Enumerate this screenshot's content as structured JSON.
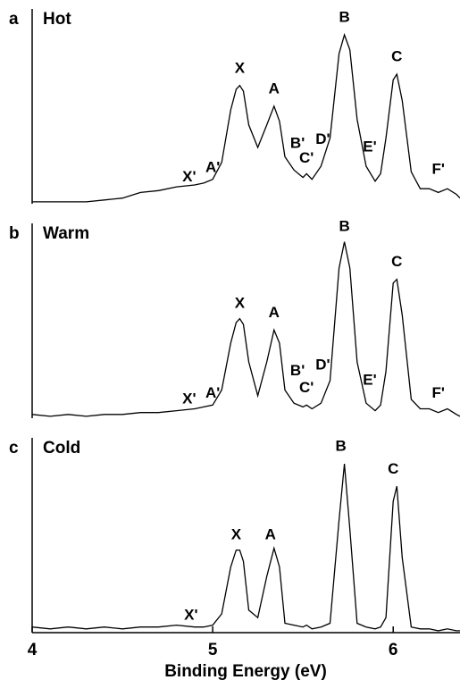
{
  "chart_data": [
    {
      "type": "line",
      "label": "a",
      "title": "Hot",
      "xlim": [
        4,
        6.37
      ],
      "ylim": [
        0,
        1
      ],
      "color": "#000000",
      "x": [
        4.0,
        4.1,
        4.2,
        4.3,
        4.4,
        4.5,
        4.6,
        4.7,
        4.8,
        4.9,
        4.95,
        5.0,
        5.05,
        5.1,
        5.13,
        5.15,
        5.17,
        5.2,
        5.25,
        5.3,
        5.34,
        5.37,
        5.4,
        5.45,
        5.5,
        5.52,
        5.55,
        5.6,
        5.65,
        5.7,
        5.73,
        5.76,
        5.8,
        5.85,
        5.9,
        5.93,
        5.96,
        6.0,
        6.02,
        6.05,
        6.1,
        6.15,
        6.2,
        6.25,
        6.3,
        6.35,
        6.37
      ],
      "values": [
        0.01,
        0.01,
        0.01,
        0.01,
        0.02,
        0.03,
        0.06,
        0.07,
        0.09,
        0.1,
        0.11,
        0.13,
        0.22,
        0.5,
        0.61,
        0.63,
        0.6,
        0.42,
        0.3,
        0.42,
        0.52,
        0.44,
        0.25,
        0.18,
        0.14,
        0.16,
        0.13,
        0.2,
        0.35,
        0.8,
        0.9,
        0.82,
        0.45,
        0.2,
        0.12,
        0.16,
        0.35,
        0.66,
        0.69,
        0.55,
        0.17,
        0.08,
        0.08,
        0.06,
        0.08,
        0.05,
        0.03
      ],
      "annotations": [
        {
          "text": "X",
          "x": 5.15,
          "y": 0.72
        },
        {
          "text": "A",
          "x": 5.34,
          "y": 0.61
        },
        {
          "text": "B",
          "x": 5.73,
          "y": 0.99
        },
        {
          "text": "C",
          "x": 6.02,
          "y": 0.78
        },
        {
          "text": "X'",
          "x": 4.87,
          "y": 0.14
        },
        {
          "text": "A'",
          "x": 5.0,
          "y": 0.19
        },
        {
          "text": "B'",
          "x": 5.47,
          "y": 0.32
        },
        {
          "text": "C'",
          "x": 5.52,
          "y": 0.24
        },
        {
          "text": "D'",
          "x": 5.61,
          "y": 0.34
        },
        {
          "text": "E'",
          "x": 5.87,
          "y": 0.3
        },
        {
          "text": "F'",
          "x": 6.25,
          "y": 0.18
        }
      ]
    },
    {
      "type": "line",
      "label": "b",
      "title": "Warm",
      "xlim": [
        4,
        6.37
      ],
      "ylim": [
        0,
        1
      ],
      "color": "#000000",
      "x": [
        4.0,
        4.1,
        4.2,
        4.3,
        4.4,
        4.5,
        4.6,
        4.7,
        4.8,
        4.9,
        4.95,
        5.0,
        5.05,
        5.1,
        5.13,
        5.15,
        5.17,
        5.2,
        5.25,
        5.3,
        5.34,
        5.37,
        5.4,
        5.45,
        5.5,
        5.52,
        5.55,
        5.6,
        5.65,
        5.7,
        5.73,
        5.76,
        5.8,
        5.85,
        5.9,
        5.93,
        5.96,
        6.0,
        6.02,
        6.05,
        6.1,
        6.15,
        6.2,
        6.25,
        6.3,
        6.35,
        6.37
      ],
      "values": [
        0.02,
        0.01,
        0.02,
        0.01,
        0.02,
        0.02,
        0.03,
        0.03,
        0.04,
        0.05,
        0.06,
        0.07,
        0.15,
        0.4,
        0.51,
        0.53,
        0.5,
        0.3,
        0.12,
        0.3,
        0.47,
        0.4,
        0.15,
        0.08,
        0.06,
        0.07,
        0.05,
        0.08,
        0.2,
        0.8,
        0.94,
        0.8,
        0.3,
        0.08,
        0.04,
        0.07,
        0.25,
        0.72,
        0.74,
        0.55,
        0.1,
        0.05,
        0.05,
        0.03,
        0.05,
        0.02,
        0.01
      ],
      "annotations": [
        {
          "text": "X",
          "x": 5.15,
          "y": 0.61
        },
        {
          "text": "A",
          "x": 5.34,
          "y": 0.56
        },
        {
          "text": "B",
          "x": 5.73,
          "y": 1.02
        },
        {
          "text": "C",
          "x": 6.02,
          "y": 0.83
        },
        {
          "text": "X'",
          "x": 4.87,
          "y": 0.1
        },
        {
          "text": "A'",
          "x": 5.0,
          "y": 0.13
        },
        {
          "text": "B'",
          "x": 5.47,
          "y": 0.25
        },
        {
          "text": "C'",
          "x": 5.52,
          "y": 0.16
        },
        {
          "text": "D'",
          "x": 5.61,
          "y": 0.28
        },
        {
          "text": "E'",
          "x": 5.87,
          "y": 0.2
        },
        {
          "text": "F'",
          "x": 6.25,
          "y": 0.13
        }
      ]
    },
    {
      "type": "line",
      "label": "c",
      "title": "Cold",
      "xlim": [
        4,
        6.37
      ],
      "ylim": [
        0,
        1
      ],
      "color": "#000000",
      "xlabel": "Binding Energy (eV)",
      "xticks": [
        4,
        5,
        6
      ],
      "x": [
        4.0,
        4.1,
        4.2,
        4.3,
        4.4,
        4.5,
        4.6,
        4.7,
        4.8,
        4.9,
        4.95,
        5.0,
        5.05,
        5.1,
        5.13,
        5.15,
        5.17,
        5.2,
        5.25,
        5.3,
        5.34,
        5.37,
        5.4,
        5.45,
        5.5,
        5.52,
        5.55,
        5.6,
        5.65,
        5.7,
        5.73,
        5.76,
        5.8,
        5.85,
        5.9,
        5.93,
        5.96,
        6.0,
        6.02,
        6.05,
        6.1,
        6.15,
        6.2,
        6.25,
        6.3,
        6.35,
        6.37
      ],
      "values": [
        0.03,
        0.02,
        0.03,
        0.02,
        0.03,
        0.02,
        0.03,
        0.03,
        0.04,
        0.03,
        0.03,
        0.04,
        0.1,
        0.35,
        0.44,
        0.44,
        0.38,
        0.12,
        0.08,
        0.3,
        0.45,
        0.35,
        0.05,
        0.04,
        0.03,
        0.04,
        0.02,
        0.03,
        0.05,
        0.6,
        0.9,
        0.55,
        0.05,
        0.03,
        0.02,
        0.03,
        0.08,
        0.7,
        0.78,
        0.4,
        0.03,
        0.02,
        0.02,
        0.01,
        0.02,
        0.01,
        0.01
      ],
      "annotations": [
        {
          "text": "X",
          "x": 5.13,
          "y": 0.52
        },
        {
          "text": "A",
          "x": 5.32,
          "y": 0.52
        },
        {
          "text": "B",
          "x": 5.71,
          "y": 0.99
        },
        {
          "text": "C",
          "x": 6.0,
          "y": 0.87
        },
        {
          "text": "X'",
          "x": 4.88,
          "y": 0.09
        }
      ]
    }
  ]
}
